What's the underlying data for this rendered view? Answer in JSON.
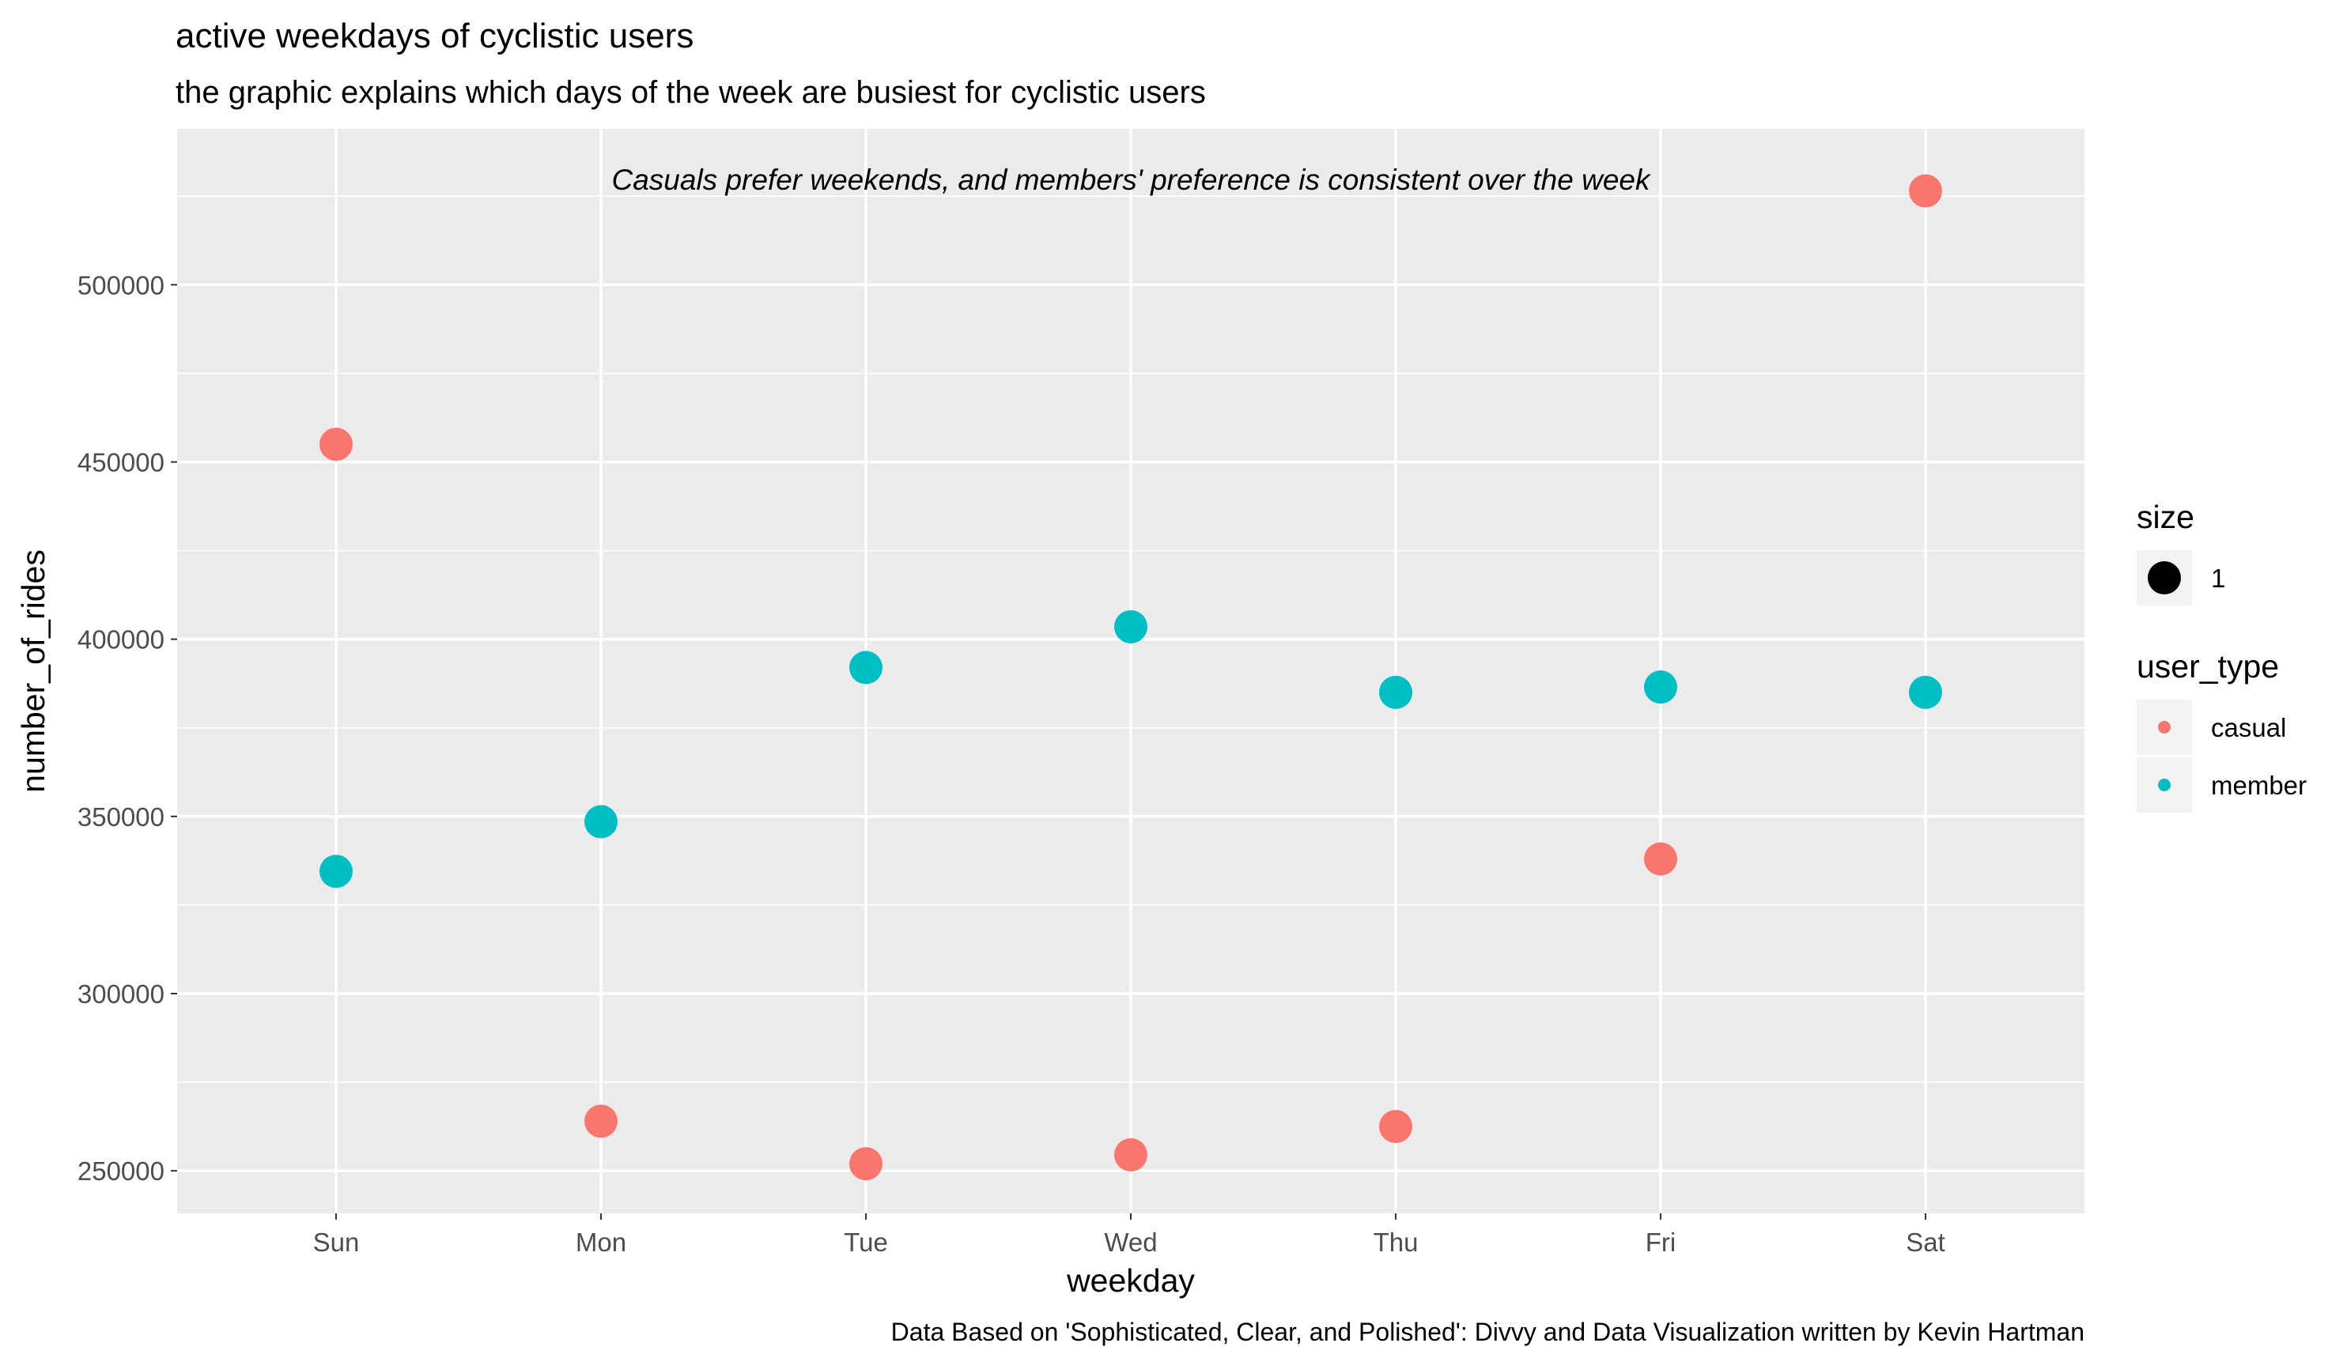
{
  "chart_data": {
    "type": "scatter",
    "title": "active weekdays of cyclistic users",
    "subtitle": "the graphic explains which days of the week are busiest for cyclistic users",
    "annotation": "Casuals prefer weekends, and members' preference is consistent over the week",
    "caption": "Data Based on 'Sophisticated, Clear, and Polished': Divvy and Data Visualization written by Kevin Hartman",
    "xlabel": "weekday",
    "ylabel": "number_of_rides",
    "categories": [
      "Sun",
      "Mon",
      "Tue",
      "Wed",
      "Thu",
      "Fri",
      "Sat"
    ],
    "ylim": [
      238000,
      544000
    ],
    "yticks": [
      250000,
      300000,
      350000,
      400000,
      450000,
      500000
    ],
    "grid": true,
    "legend_position": "right",
    "series": [
      {
        "name": "casual",
        "color": "#F8766D",
        "values": [
          455000,
          264000,
          252000,
          254500,
          262500,
          338000,
          526500
        ]
      },
      {
        "name": "member",
        "color": "#00BFC4",
        "values": [
          334500,
          348500,
          392000,
          403500,
          385000,
          386500,
          385000
        ]
      }
    ],
    "legends": [
      {
        "title": "size",
        "entries": [
          {
            "label": "1",
            "symbol": "point-large",
            "color": "#000000"
          }
        ]
      },
      {
        "title": "user_type",
        "entries": [
          {
            "label": "casual",
            "symbol": "point-small",
            "color": "#F8766D"
          },
          {
            "label": "member",
            "symbol": "point-small",
            "color": "#00BFC4"
          }
        ]
      }
    ]
  }
}
